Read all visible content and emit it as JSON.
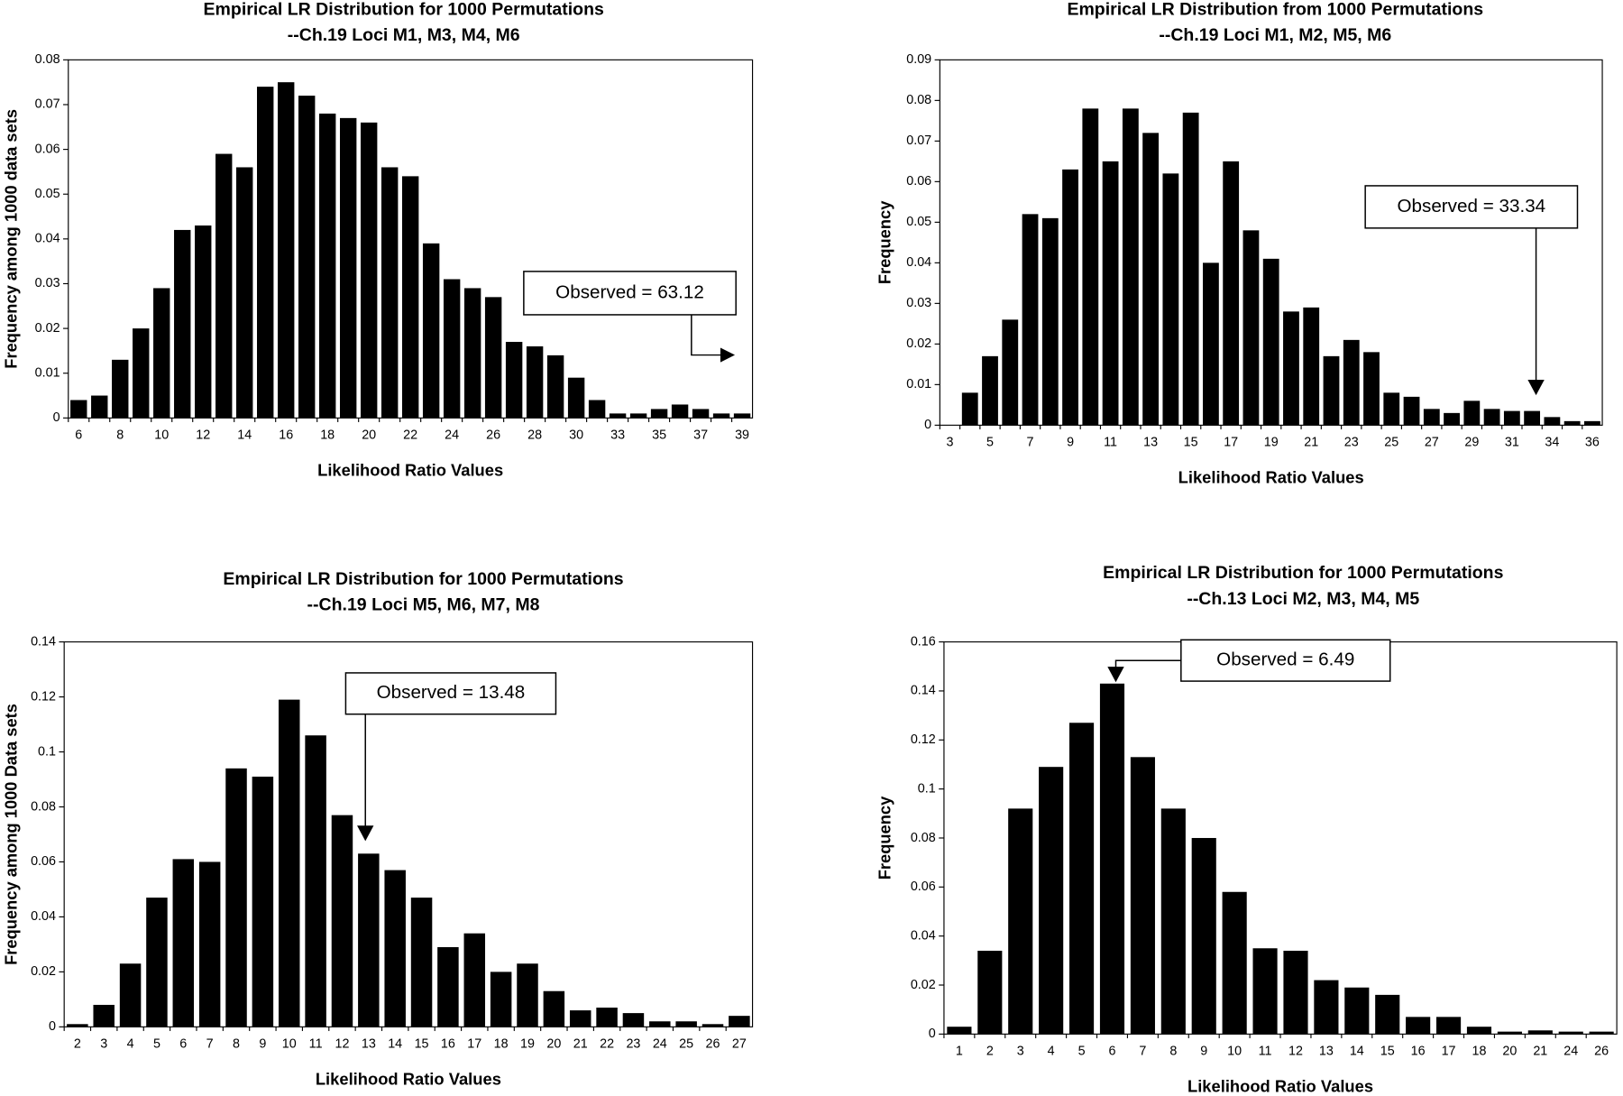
{
  "chart_data": [
    {
      "type": "bar",
      "title": "Empirical LR Distribution for 1000 Permutations",
      "subtitle": "--Ch.19 Loci M1, M3, M4, M6",
      "x_label": "Likelihood Ratio Values",
      "y_label": "Frequency among 1000 data sets",
      "annotation": "Observed = 63.12",
      "categories": [
        "6",
        null,
        "8",
        null,
        "10",
        null,
        "12",
        null,
        "14",
        null,
        "16",
        null,
        "18",
        null,
        "20",
        null,
        "22",
        null,
        "24",
        null,
        "26",
        null,
        "28",
        null,
        "30",
        null,
        "33",
        null,
        "35",
        null,
        "37",
        null,
        "39"
      ],
      "values": [
        0.004,
        0.005,
        0.013,
        0.02,
        0.029,
        0.042,
        0.043,
        0.059,
        0.056,
        0.074,
        0.075,
        0.072,
        0.068,
        0.067,
        0.066,
        0.056,
        0.054,
        0.039,
        0.031,
        0.029,
        0.027,
        0.017,
        0.016,
        0.014,
        0.009,
        0.004,
        0.001,
        0.001,
        0.002,
        0.003,
        0.002,
        0.001,
        0.001
      ],
      "color": "#000000",
      "ylim": [
        0,
        0.08
      ],
      "yticks": [
        0,
        0.01,
        0.02,
        0.03,
        0.04,
        0.05,
        0.06,
        0.07,
        0.08
      ]
    },
    {
      "type": "bar",
      "title": "Empirical LR Distribution from 1000 Permutations",
      "subtitle": "--Ch.19 Loci M1, M2, M5, M6",
      "x_label": "Likelihood Ratio Values",
      "y_label": "Frequency",
      "annotation": "Observed = 33.34",
      "categories": [
        "3",
        null,
        "5",
        null,
        "7",
        null,
        "9",
        null,
        "11",
        null,
        "13",
        null,
        "15",
        null,
        "17",
        null,
        "19",
        null,
        "21",
        null,
        "23",
        null,
        "25",
        null,
        "27",
        null,
        "29",
        null,
        "31",
        null,
        "34",
        null,
        "36"
      ],
      "values": [
        0,
        0.008,
        0.017,
        0.026,
        0.052,
        0.051,
        0.063,
        0.078,
        0.065,
        0.078,
        0.072,
        0.062,
        0.077,
        0.04,
        0.065,
        0.048,
        0.041,
        0.028,
        0.029,
        0.017,
        0.021,
        0.018,
        0.008,
        0.007,
        0.004,
        0.003,
        0.006,
        0.004,
        0.0035,
        0.0035,
        0.002,
        0.001,
        0.001
      ],
      "color": "#000000",
      "ylim": [
        0,
        0.09
      ],
      "yticks": [
        0,
        0.01,
        0.02,
        0.03,
        0.04,
        0.05,
        0.06,
        0.07,
        0.08,
        0.09
      ]
    },
    {
      "type": "bar",
      "title": "Empirical LR Distribution for 1000 Permutations",
      "subtitle": "--Ch.19 Loci M5, M6, M7, M8",
      "x_label": "Likelihood Ratio Values",
      "y_label": "Frequency among 1000 Data sets",
      "annotation": "Observed = 13.48",
      "categories": [
        "2",
        "3",
        "4",
        "5",
        "6",
        "7",
        "8",
        "9",
        "10",
        "11",
        "12",
        "13",
        "14",
        "15",
        "16",
        "17",
        "18",
        "19",
        "20",
        "21",
        "22",
        "23",
        "24",
        "25",
        "26",
        "27"
      ],
      "values": [
        0.001,
        0.008,
        0.023,
        0.047,
        0.061,
        0.06,
        0.094,
        0.091,
        0.119,
        0.106,
        0.077,
        0.063,
        0.057,
        0.047,
        0.029,
        0.034,
        0.02,
        0.023,
        0.013,
        0.006,
        0.007,
        0.005,
        0.002,
        0.002,
        0.001,
        0.004
      ],
      "color": "#000000",
      "ylim": [
        0,
        0.14
      ],
      "yticks": [
        0,
        0.02,
        0.04,
        0.06,
        0.08,
        0.1,
        0.12,
        0.14
      ]
    },
    {
      "type": "bar",
      "title": "Empirical LR Distribution for 1000 Permutations",
      "subtitle": "--Ch.13 Loci M2, M3, M4, M5",
      "x_label": "Likelihood Ratio Values",
      "y_label": "Frequency",
      "annotation": "Observed = 6.49",
      "categories": [
        "1",
        "2",
        "3",
        "4",
        "5",
        "6",
        "7",
        "8",
        "9",
        "10",
        "11",
        "12",
        "13",
        "14",
        "15",
        "16",
        "17",
        "18",
        "20",
        "21",
        "24",
        "26"
      ],
      "values": [
        0.003,
        0.034,
        0.092,
        0.109,
        0.127,
        0.143,
        0.113,
        0.092,
        0.08,
        0.058,
        0.035,
        0.034,
        0.022,
        0.019,
        0.016,
        0.007,
        0.007,
        0.003,
        0.001,
        0.0015,
        0.001,
        0.001
      ],
      "color": "#000000",
      "ylim": [
        0,
        0.16
      ],
      "yticks": [
        0,
        0.02,
        0.04,
        0.06,
        0.08,
        0.1,
        0.12,
        0.14,
        0.16
      ]
    }
  ]
}
